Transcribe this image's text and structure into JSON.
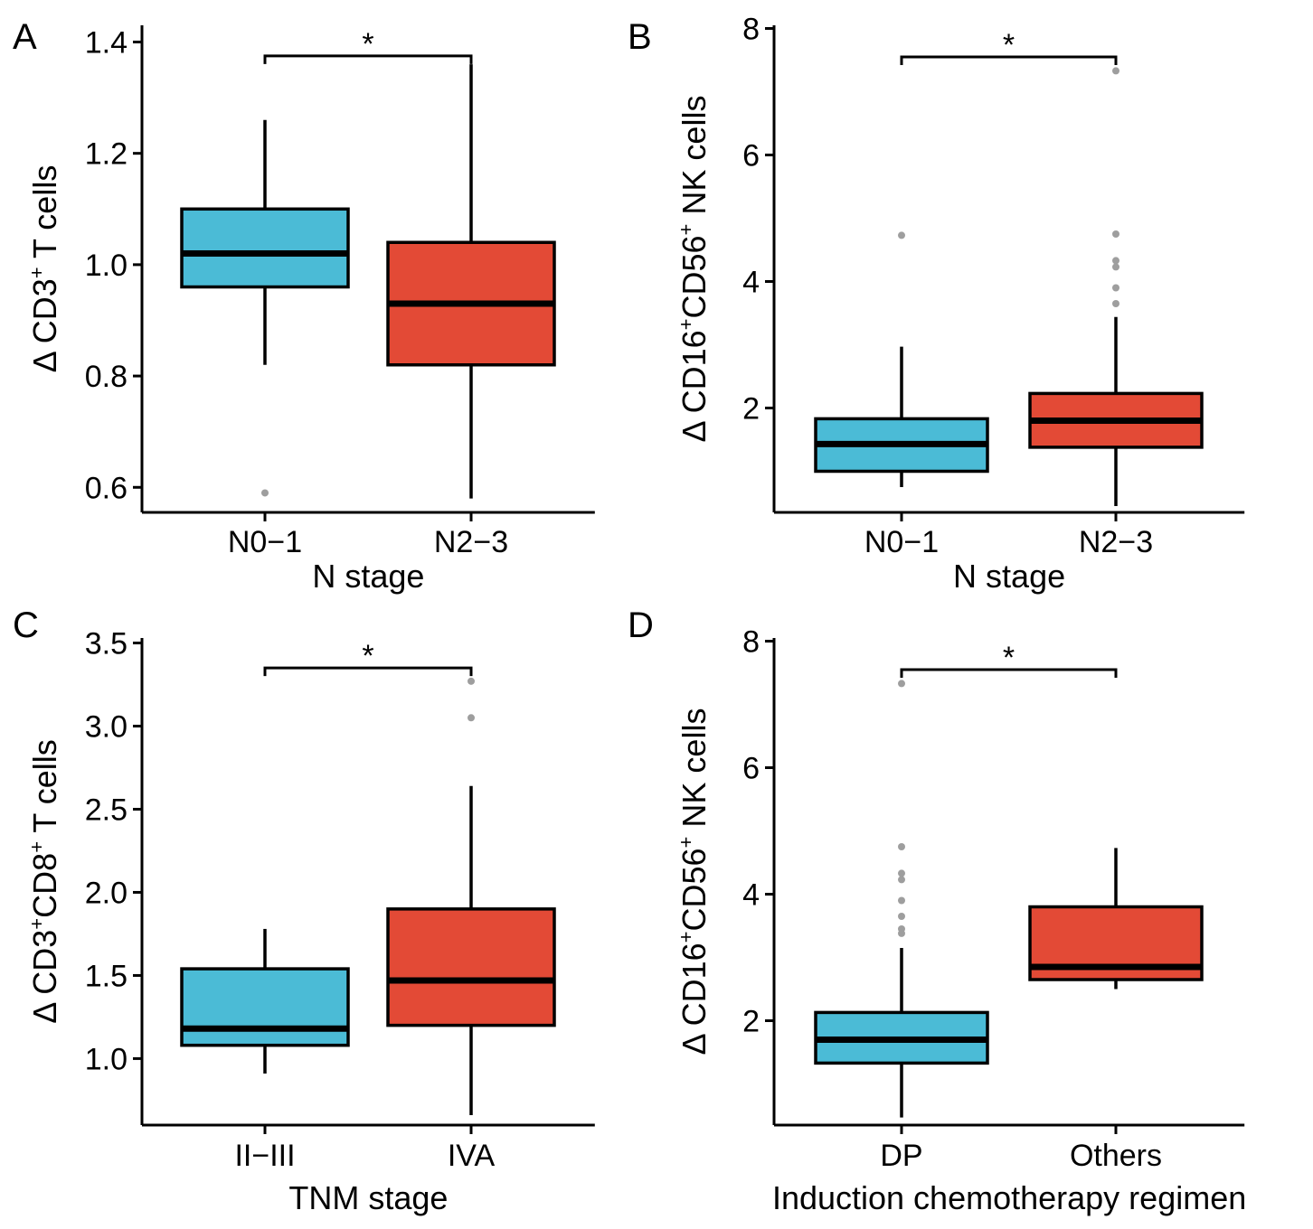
{
  "colors": {
    "group1": "#4bbbd6",
    "group2": "#e34a36",
    "outlier": "#9e9e9e",
    "line": "#000000"
  },
  "chart_data": [
    {
      "type": "boxplot",
      "panel": "A",
      "ylabel_prefix": "Δ CD3",
      "ylabel_sup": "+",
      "ylabel_suffix": " T cells",
      "xlabel": "N stage",
      "ylim": [
        0.555,
        1.43
      ],
      "yticks": [
        0.6,
        0.8,
        1.0,
        1.2,
        1.4
      ],
      "ytick_labels": [
        "0.6",
        "0.8",
        "1.0",
        "1.2",
        "1.4"
      ],
      "significance": "*",
      "bracket_y": 1.375,
      "groups": [
        {
          "name": "N0−1",
          "whisker_low": 0.82,
          "q1": 0.96,
          "median": 1.02,
          "q3": 1.1,
          "whisker_high": 1.26,
          "outliers": [
            0.59
          ]
        },
        {
          "name": "N2−3",
          "whisker_low": 0.58,
          "q1": 0.82,
          "median": 0.93,
          "q3": 1.04,
          "whisker_high": 1.36,
          "outliers": []
        }
      ]
    },
    {
      "type": "boxplot",
      "panel": "B",
      "ylabel_prefix": "Δ CD16",
      "ylabel_sup": "+",
      "ylabel_mid": "CD56",
      "ylabel_sup2": "+",
      "ylabel_suffix": " NK cells",
      "xlabel": "N stage",
      "ylim": [
        0.35,
        8.05
      ],
      "yticks": [
        2,
        4,
        6,
        8
      ],
      "ytick_labels": [
        "2",
        "4",
        "6",
        "8"
      ],
      "significance": "*",
      "bracket_y": 7.55,
      "groups": [
        {
          "name": "N0−1",
          "whisker_low": 0.75,
          "q1": 1.0,
          "median": 1.43,
          "q3": 1.83,
          "whisker_high": 2.97,
          "outliers": [
            4.73
          ]
        },
        {
          "name": "N2−3",
          "whisker_low": 0.45,
          "q1": 1.38,
          "median": 1.8,
          "q3": 2.23,
          "whisker_high": 3.44,
          "outliers": [
            3.65,
            3.9,
            4.23,
            4.33,
            4.75,
            7.33
          ]
        }
      ]
    },
    {
      "type": "boxplot",
      "panel": "C",
      "ylabel_prefix": "Δ CD3",
      "ylabel_sup": "+",
      "ylabel_mid": "CD8",
      "ylabel_sup2": "+",
      "ylabel_suffix": " T cells",
      "xlabel": "TNM stage",
      "ylim": [
        0.6,
        3.53
      ],
      "yticks": [
        1.0,
        1.5,
        2.0,
        2.5,
        3.0,
        3.5
      ],
      "ytick_labels": [
        "1.0",
        "1.5",
        "2.0",
        "2.5",
        "3.0",
        "3.5"
      ],
      "significance": "*",
      "bracket_y": 3.35,
      "groups": [
        {
          "name": "II−III",
          "whisker_low": 0.91,
          "q1": 1.08,
          "median": 1.18,
          "q3": 1.54,
          "whisker_high": 1.78,
          "outliers": []
        },
        {
          "name": "IVA",
          "whisker_low": 0.66,
          "q1": 1.2,
          "median": 1.47,
          "q3": 1.9,
          "whisker_high": 2.64,
          "outliers": [
            3.05,
            3.27
          ]
        }
      ]
    },
    {
      "type": "boxplot",
      "panel": "D",
      "ylabel_prefix": "Δ CD16",
      "ylabel_sup": "+",
      "ylabel_mid": "CD56",
      "ylabel_sup2": "+",
      "ylabel_suffix": " NK cells",
      "xlabel": "Induction chemotherapy regimen",
      "ylim": [
        0.35,
        8.05
      ],
      "yticks": [
        2,
        4,
        6,
        8
      ],
      "ytick_labels": [
        "2",
        "4",
        "6",
        "8"
      ],
      "significance": "*",
      "bracket_y": 7.55,
      "groups": [
        {
          "name": "DP",
          "whisker_low": 0.47,
          "q1": 1.33,
          "median": 1.7,
          "q3": 2.13,
          "whisker_high": 3.15,
          "outliers": [
            3.38,
            3.45,
            3.65,
            3.9,
            4.23,
            4.33,
            4.75,
            7.33
          ]
        },
        {
          "name": "Others",
          "whisker_low": 2.5,
          "q1": 2.65,
          "median": 2.85,
          "q3": 3.8,
          "whisker_high": 4.73,
          "outliers": []
        }
      ]
    }
  ]
}
